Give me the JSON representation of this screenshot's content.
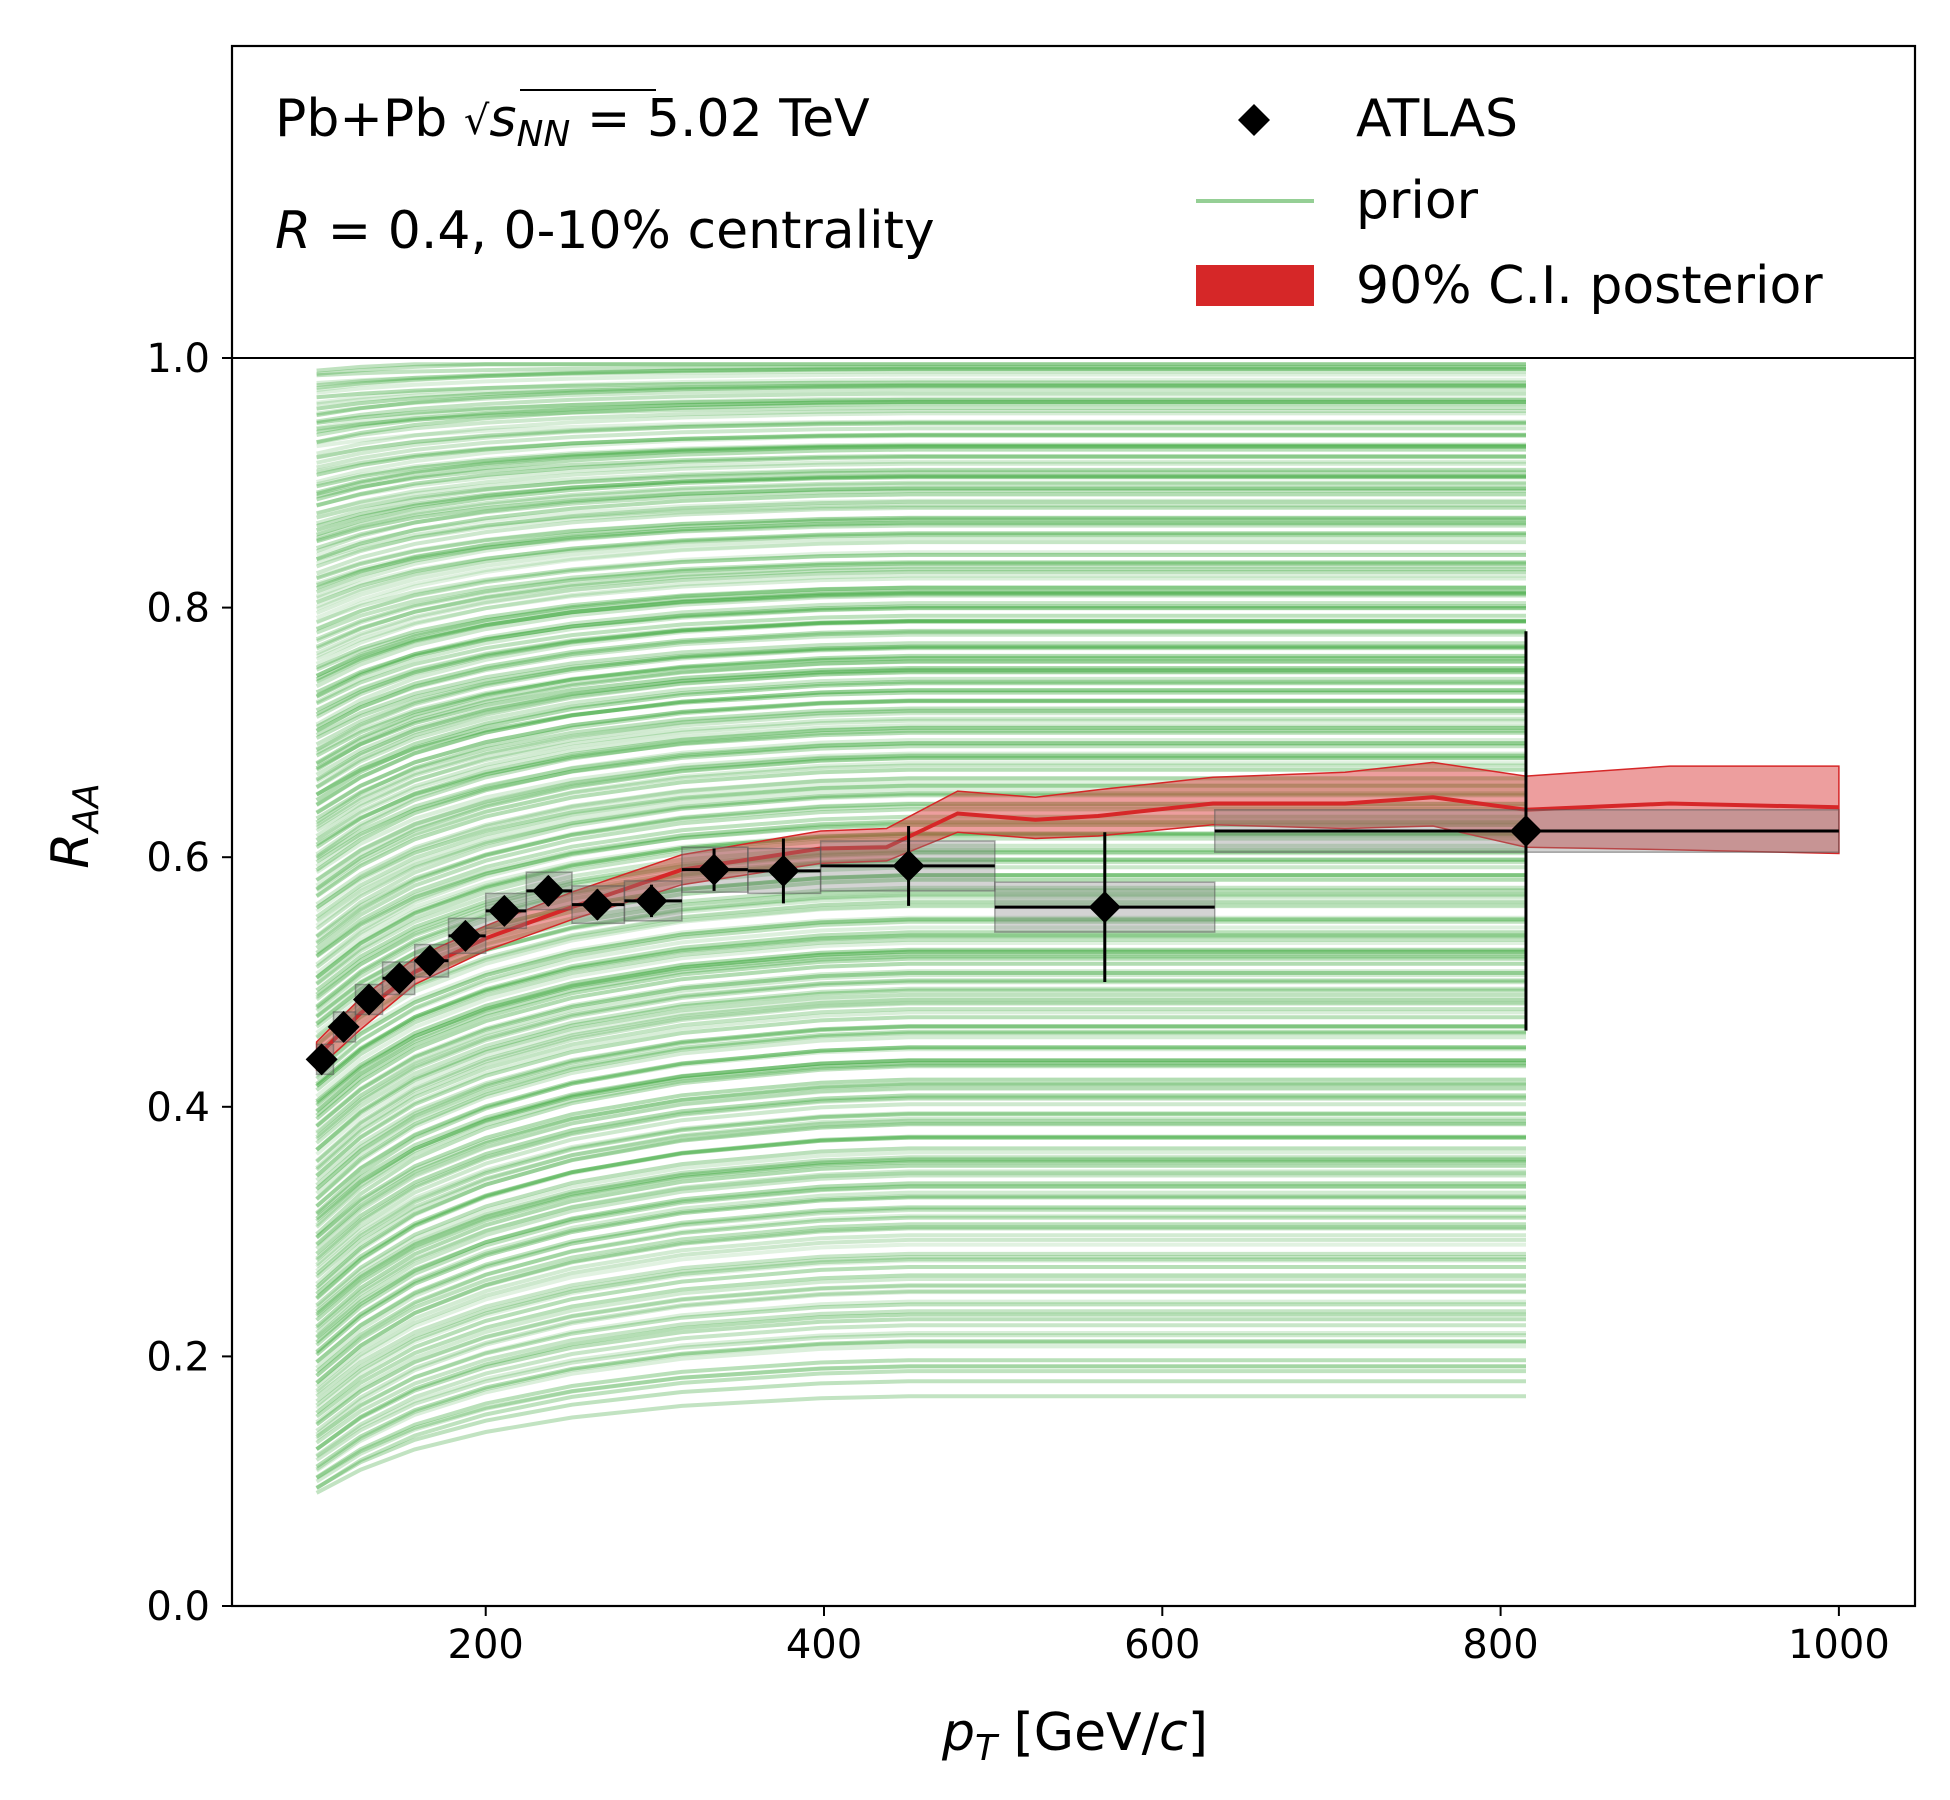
{
  "chart_data": {
    "type": "line",
    "title": "",
    "annotations": {
      "system_prefix": "Pb+Pb ",
      "sqrt_s": "s",
      "sqrt_sub": "NN",
      "energy": " = 5.02 TeV",
      "radius_var": "R",
      "radius_rest": " = 0.4, 0-10% centrality"
    },
    "xlabel": {
      "var": "p",
      "sub": "T",
      "rest": " [GeV/",
      "unit_var": "c",
      "close": "]"
    },
    "ylabel": {
      "var": "R",
      "sub": "AA"
    },
    "xlim": [
      50,
      1045
    ],
    "ylim": [
      0,
      1.25
    ],
    "x_ticks": [
      200,
      400,
      600,
      800,
      1000
    ],
    "x_tick_labels": [
      "200",
      "400",
      "600",
      "800",
      "1000"
    ],
    "y_ticks": [
      0.0,
      0.2,
      0.4,
      0.6,
      0.8,
      1.0
    ],
    "y_tick_labels": [
      "0.0",
      "0.2",
      "0.4",
      "0.6",
      "0.8",
      "1.0"
    ],
    "reference_line": 1.0,
    "legend": {
      "placement": "top-right",
      "entries": [
        {
          "label": "ATLAS",
          "marker": "diamond",
          "color": "#000000"
        },
        {
          "label": "prior",
          "marker": "line",
          "color": "#2ca02c"
        },
        {
          "label": "90% C.I. posterior",
          "marker": "patch",
          "color": "#d62728"
        }
      ]
    },
    "prior": {
      "color": "#2ca02c",
      "x": [
        100,
        126,
        158,
        200,
        251,
        316,
        398,
        450,
        562,
        630,
        794,
        815
      ],
      "shape": [
        0,
        0.24,
        0.45,
        0.63,
        0.78,
        0.9,
        0.98,
        1.0,
        1.0,
        1.0,
        1.0,
        1.0
      ],
      "start_range": [
        0.09,
        0.99
      ],
      "end_range": [
        0.17,
        1.0
      ],
      "n_curves": 320
    },
    "posterior": {
      "color": "#d62728",
      "x": [
        100,
        126,
        158,
        200,
        251,
        316,
        398,
        437,
        479,
        525,
        562,
        630,
        708,
        760,
        815,
        900,
        1000
      ],
      "median": [
        0.44,
        0.475,
        0.508,
        0.535,
        0.56,
        0.59,
        0.607,
        0.608,
        0.635,
        0.63,
        0.633,
        0.643,
        0.643,
        0.648,
        0.638,
        0.643,
        0.64
      ],
      "lower": [
        0.43,
        0.462,
        0.498,
        0.525,
        0.55,
        0.578,
        0.595,
        0.597,
        0.62,
        0.615,
        0.617,
        0.626,
        0.623,
        0.625,
        0.608,
        0.606,
        0.603
      ],
      "upper": [
        0.452,
        0.487,
        0.519,
        0.545,
        0.572,
        0.602,
        0.621,
        0.623,
        0.653,
        0.648,
        0.654,
        0.664,
        0.668,
        0.676,
        0.665,
        0.673,
        0.673
      ]
    },
    "series": [
      {
        "name": "ATLAS",
        "x": [
          103,
          116,
          131,
          149,
          167,
          188,
          211,
          237,
          266,
          298,
          335,
          376,
          450,
          566,
          815
        ],
        "y": [
          0.438,
          0.464,
          0.486,
          0.503,
          0.517,
          0.537,
          0.557,
          0.573,
          0.562,
          0.565,
          0.59,
          0.589,
          0.593,
          0.56,
          0.621
        ],
        "x_lo": [
          100,
          110,
          123,
          139,
          158,
          178,
          200,
          224,
          251,
          282,
          316,
          355,
          398,
          501,
          631
        ],
        "x_hi": [
          110,
          123,
          139,
          158,
          178,
          200,
          224,
          251,
          282,
          316,
          355,
          398,
          501,
          631,
          1000
        ],
        "stat_err": [
          0.008,
          0.008,
          0.008,
          0.009,
          0.009,
          0.01,
          0.011,
          0.012,
          0.012,
          0.013,
          0.017,
          0.026,
          0.032,
          0.06,
          0.16
        ],
        "sys_err": [
          0.012,
          0.012,
          0.012,
          0.013,
          0.013,
          0.014,
          0.014,
          0.015,
          0.015,
          0.016,
          0.018,
          0.018,
          0.02,
          0.02,
          0.017
        ]
      }
    ]
  }
}
